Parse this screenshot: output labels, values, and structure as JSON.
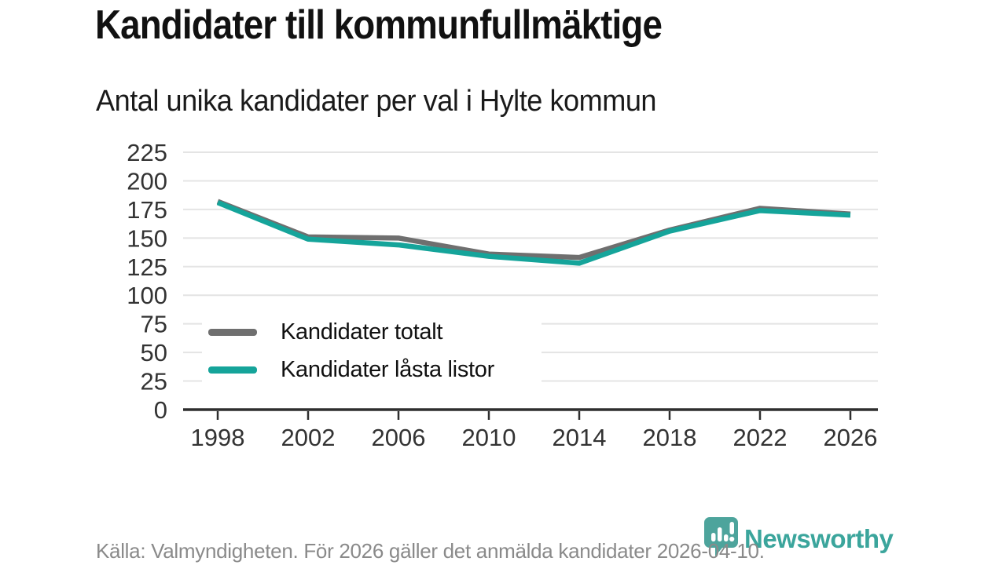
{
  "header": {
    "title": "Kandidater till kommunfullmäktige",
    "subtitle": "Antal unika kandidater per val i Hylte kommun"
  },
  "chart_data": {
    "type": "line",
    "title": "Kandidater till kommunfullmäktige",
    "subtitle": "Antal unika kandidater per val i Hylte kommun",
    "categories": [
      "1998",
      "2002",
      "2006",
      "2010",
      "2014",
      "2018",
      "2022",
      "2026"
    ],
    "series": [
      {
        "name": "Kandidater totalt",
        "color": "#6f6f6f",
        "values": [
          182,
          151,
          150,
          136,
          133,
          157,
          176,
          171
        ]
      },
      {
        "name": "Kandidater låsta listor",
        "color": "#15a49a",
        "values": [
          181,
          149,
          144,
          134,
          128,
          156,
          174,
          170
        ]
      }
    ],
    "xlabel": "",
    "ylabel": "",
    "ylim": [
      0,
      225
    ],
    "yticks": [
      0,
      25,
      50,
      75,
      100,
      125,
      150,
      175,
      200,
      225
    ],
    "grid": true,
    "legend_position": "inside bottom-left"
  },
  "footer": {
    "source": "Källa: Valmyndigheten. För 2026 gäller det anmälda kandidater 2026-04-10.",
    "brand": "Newsworthy"
  },
  "colors": {
    "accent_teal": "#15a49a",
    "series_gray": "#6f6f6f",
    "brand_teal": "#3ba59c",
    "logo_bubble": "#4da49c",
    "grid": "#e4e4e4",
    "axis": "#2e2e2e",
    "tick_text": "#333333",
    "muted_text": "#8a8a8a"
  }
}
